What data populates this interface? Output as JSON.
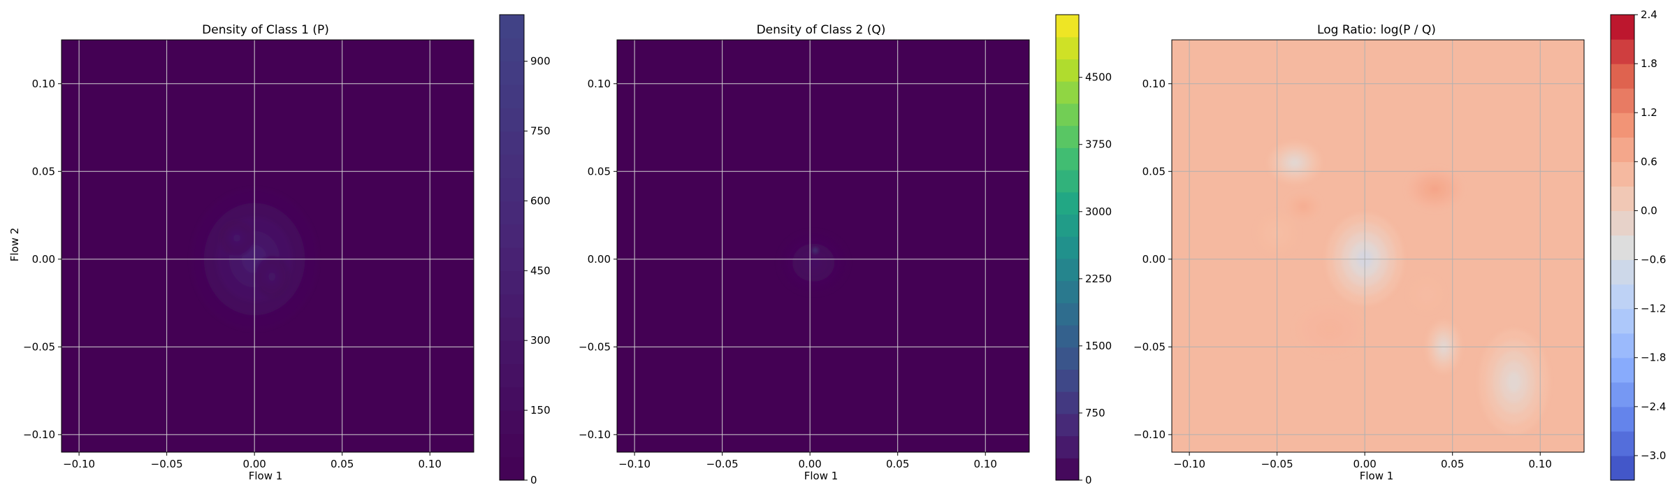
{
  "chart_data": [
    {
      "type": "heatmap",
      "title": "Density of Class 1 (P)",
      "xlabel": "Flow 1",
      "ylabel": "Flow 2",
      "xlim": [
        -0.11,
        0.125
      ],
      "ylim": [
        -0.11,
        0.125
      ],
      "xticks": [
        -0.1,
        -0.05,
        0.0,
        0.05,
        0.1
      ],
      "yticks": [
        -0.1,
        -0.05,
        0.0,
        0.05,
        0.1
      ],
      "xtick_labels": [
        "−0.10",
        "−0.05",
        "0.00",
        "0.05",
        "0.10"
      ],
      "ytick_labels": [
        "−0.10",
        "−0.05",
        "0.00",
        "0.05",
        "0.10"
      ],
      "grid": true,
      "colormap": "viridis",
      "background_color": "#440154",
      "colorbar": {
        "min": 0,
        "max": 1000,
        "ticks": [
          0,
          150,
          300,
          450,
          600,
          750,
          900
        ],
        "tick_labels": [
          "0",
          "150",
          "300",
          "450",
          "600",
          "750",
          "900"
        ],
        "levels": 20,
        "range_shown": [
          0.0,
          0.2
        ]
      },
      "blobs": [
        {
          "x": 0.0,
          "y": 0.0,
          "value": 120,
          "sx": 0.036,
          "sy": 0.04
        },
        {
          "x": -0.01,
          "y": 0.012,
          "value": 90,
          "sx": 0.01,
          "sy": 0.01
        },
        {
          "x": 0.01,
          "y": -0.01,
          "value": 80,
          "sx": 0.01,
          "sy": 0.012
        }
      ]
    },
    {
      "type": "heatmap",
      "title": "Density of Class 2 (Q)",
      "xlabel": "Flow 1",
      "ylabel": "",
      "xlim": [
        -0.11,
        0.125
      ],
      "ylim": [
        -0.11,
        0.125
      ],
      "xticks": [
        -0.1,
        -0.05,
        0.0,
        0.05,
        0.1
      ],
      "yticks": [
        -0.1,
        -0.05,
        0.0,
        0.05,
        0.1
      ],
      "xtick_labels": [
        "−0.10",
        "−0.05",
        "0.00",
        "0.05",
        "0.10"
      ],
      "ytick_labels": [
        "−0.10",
        "−0.05",
        "0.00",
        "0.05",
        "0.10"
      ],
      "grid": true,
      "colormap": "viridis",
      "background_color": "#440154",
      "colorbar": {
        "min": 0,
        "max": 5200,
        "ticks": [
          0,
          750,
          1500,
          2250,
          3000,
          3750,
          4500
        ],
        "tick_labels": [
          "0",
          "750",
          "1500",
          "2250",
          "3000",
          "3750",
          "4500"
        ],
        "levels": 21,
        "range_shown": [
          0.0,
          1.0
        ]
      },
      "blobs": [
        {
          "x": 0.002,
          "y": -0.002,
          "value": 320,
          "sx": 0.02,
          "sy": 0.018
        },
        {
          "x": 0.003,
          "y": 0.005,
          "value": 2500,
          "sx": 0.0015,
          "sy": 0.0015
        }
      ]
    },
    {
      "type": "heatmap",
      "title": "Log Ratio: log(P / Q)",
      "xlabel": "Flow 1",
      "ylabel": "",
      "xlim": [
        -0.11,
        0.125
      ],
      "ylim": [
        -0.11,
        0.125
      ],
      "xticks": [
        -0.1,
        -0.05,
        0.0,
        0.05,
        0.1
      ],
      "yticks": [
        -0.1,
        -0.05,
        0.0,
        0.05,
        0.1
      ],
      "xtick_labels": [
        "−0.10",
        "−0.05",
        "0.00",
        "0.05",
        "0.10"
      ],
      "ytick_labels": [
        "−0.10",
        "−0.05",
        "0.00",
        "0.05",
        "0.10"
      ],
      "grid": true,
      "colormap": "coolwarm",
      "colorbar": {
        "min": -3.3,
        "max": 2.4,
        "ticks": [
          -3.0,
          -2.4,
          -1.8,
          -1.2,
          -0.6,
          0.0,
          0.6,
          1.2,
          1.8,
          2.4
        ],
        "tick_labels": [
          "−3.0",
          "−2.4",
          "−1.8",
          "−1.2",
          "−0.6",
          "0.0",
          "0.6",
          "1.2",
          "1.8",
          "2.4"
        ],
        "levels": 19
      },
      "baseline": 0.45,
      "blobs": [
        {
          "x": 0.0,
          "y": 0.0,
          "value": -1.0,
          "sx": 0.022,
          "sy": 0.026
        },
        {
          "x": 0.04,
          "y": 0.04,
          "value": 0.9,
          "sx": 0.016,
          "sy": 0.012
        },
        {
          "x": -0.035,
          "y": 0.03,
          "value": 0.7,
          "sx": 0.01,
          "sy": 0.008
        },
        {
          "x": -0.05,
          "y": 0.015,
          "value": 0.35,
          "sx": 0.012,
          "sy": 0.012
        },
        {
          "x": -0.02,
          "y": -0.04,
          "value": 0.55,
          "sx": 0.02,
          "sy": 0.015
        },
        {
          "x": 0.035,
          "y": -0.02,
          "value": 0.4,
          "sx": 0.01,
          "sy": 0.01
        },
        {
          "x": 0.045,
          "y": -0.05,
          "value": -0.6,
          "sx": 0.01,
          "sy": 0.015
        },
        {
          "x": -0.04,
          "y": 0.055,
          "value": -0.6,
          "sx": 0.015,
          "sy": 0.012
        },
        {
          "x": 0.085,
          "y": -0.07,
          "value": -0.6,
          "sx": 0.02,
          "sy": 0.03
        }
      ]
    }
  ]
}
